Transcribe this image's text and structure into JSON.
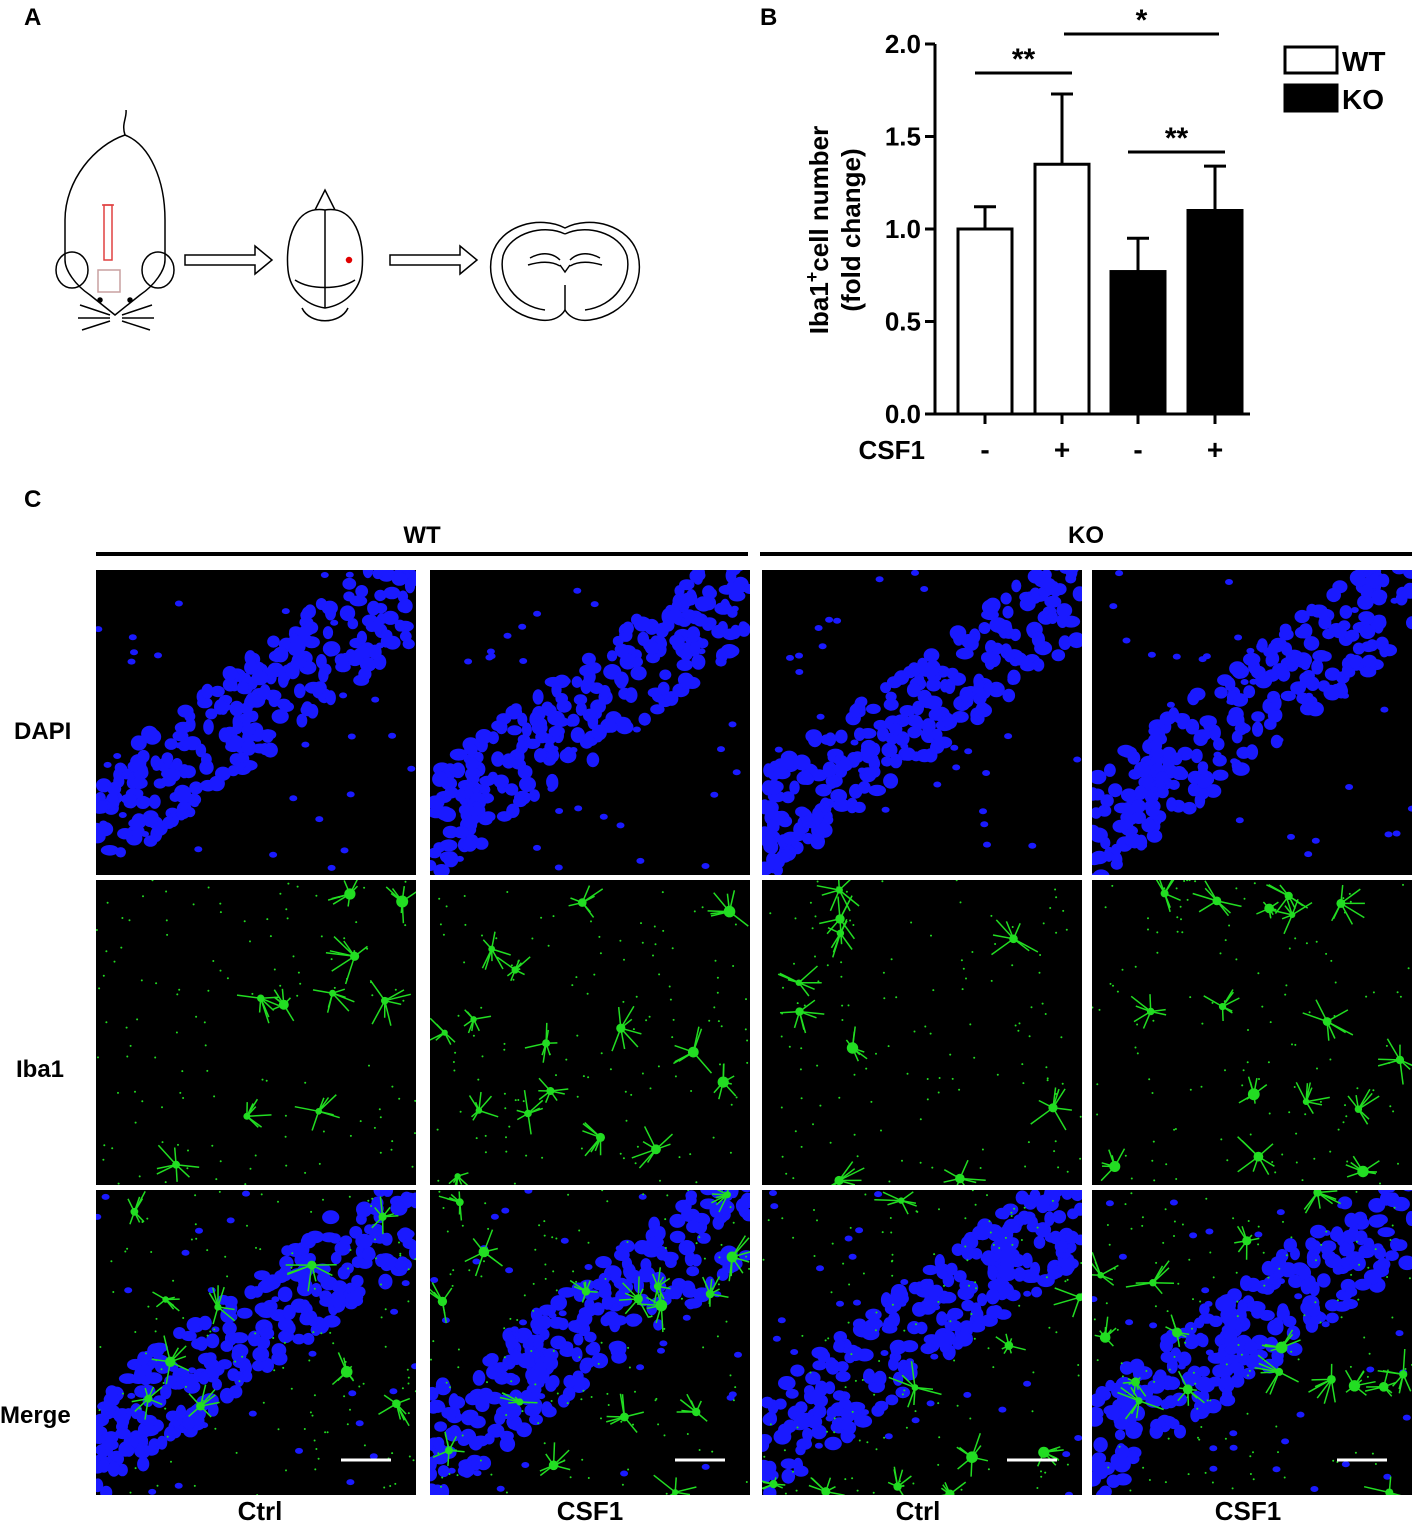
{
  "panels": {
    "a": "A",
    "b": "B",
    "c": "C"
  },
  "chart_data": {
    "type": "bar",
    "ylabel_main": "Iba1",
    "ylabel_sup": "+",
    "ylabel_rest": "cell number",
    "ylabel_line2": "(fold change)",
    "xlabel_row": "CSF1",
    "categories": [
      "-",
      "+",
      "-",
      "+"
    ],
    "groups": [
      "WT",
      "WT",
      "KO",
      "KO"
    ],
    "values": [
      1.0,
      1.35,
      0.77,
      1.1
    ],
    "errors": [
      0.12,
      0.38,
      0.18,
      0.24
    ],
    "ylim": [
      0,
      2.0
    ],
    "yticks": [
      "0.0",
      "0.5",
      "1.0",
      "1.5",
      "2.0"
    ],
    "legend": [
      {
        "name": "WT",
        "fill": "#ffffff"
      },
      {
        "name": "KO",
        "fill": "#000000"
      }
    ],
    "legend_position": "top-right",
    "significance": [
      {
        "from": 0,
        "to": 1,
        "label": "**"
      },
      {
        "from": 1,
        "to": 3,
        "label": "*"
      },
      {
        "from": 2,
        "to": 3,
        "label": "**"
      }
    ]
  },
  "figure_c": {
    "groups": [
      "WT",
      "KO"
    ],
    "rows": [
      "DAPI",
      "Iba1",
      "Merge"
    ],
    "columns": [
      "Ctrl",
      "CSF1",
      "Ctrl",
      "CSF1"
    ],
    "colors": {
      "dapi": "#1a1aff",
      "iba1": "#22dd22"
    }
  }
}
